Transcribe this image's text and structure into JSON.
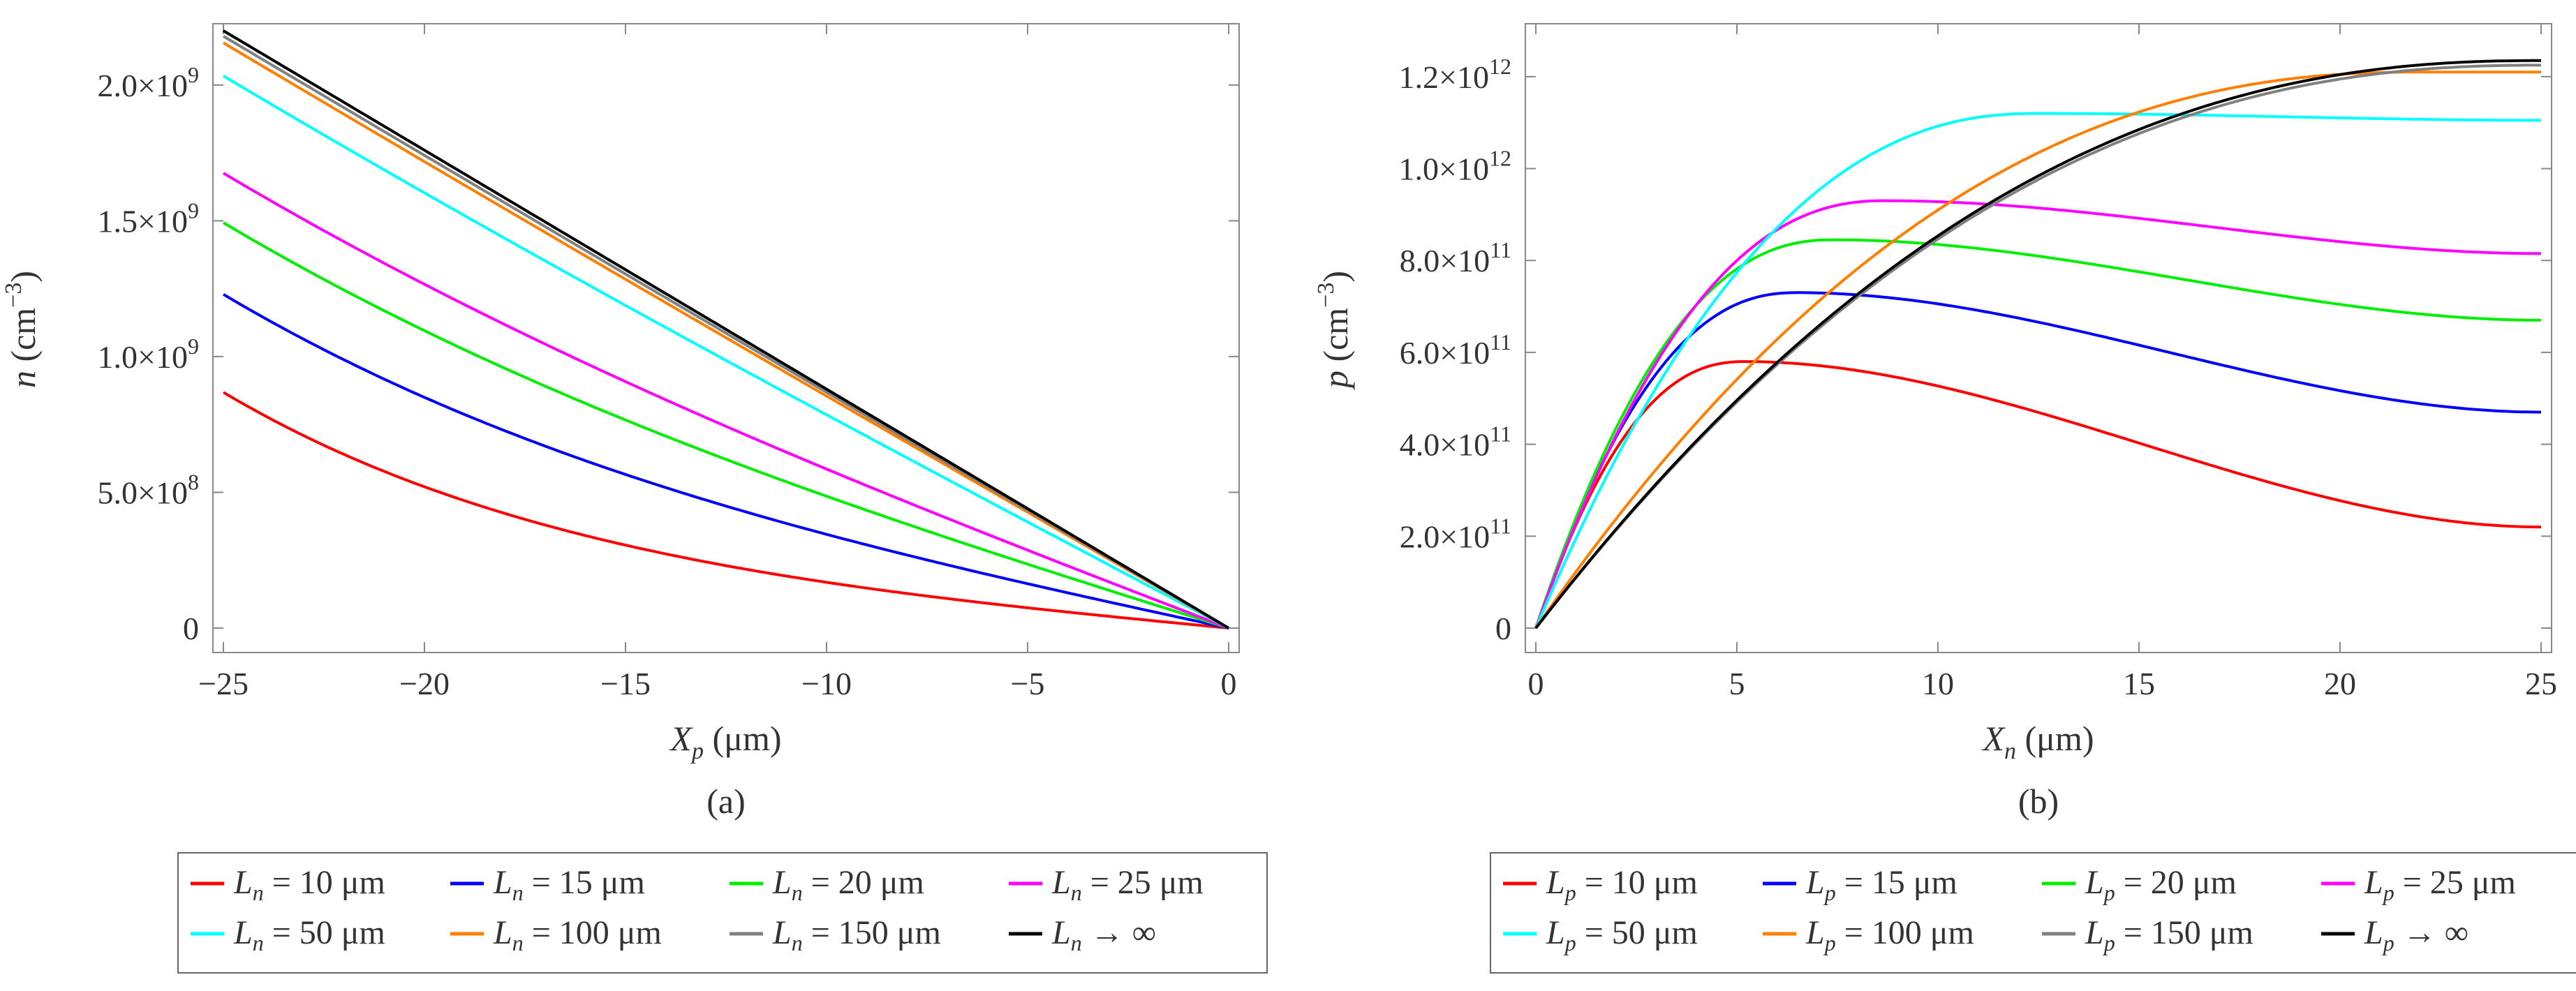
{
  "chart_data": [
    {
      "type": "line",
      "panel": "a",
      "caption": "(a)",
      "xlabel": {
        "var": "X",
        "sub": "p",
        "unit": " (μm)"
      },
      "ylabel": {
        "var": "n",
        "unit_prefix": " (cm",
        "exp": "−3",
        "unit_suffix": ")"
      },
      "xlim": [
        -25,
        0
      ],
      "ylim": [
        0,
        2200000000.0
      ],
      "xticks": [
        -25,
        -20,
        -15,
        -10,
        -5,
        0
      ],
      "xtick_labels": [
        "−25",
        "−20",
        "−15",
        "−10",
        "−5",
        "0"
      ],
      "yticks": [
        {
          "value": 0,
          "mant": "0",
          "exp": ""
        },
        {
          "value": 500000000.0,
          "mant": "5.0×10",
          "exp": "8"
        },
        {
          "value": 1000000000.0,
          "mant": "1.0×10",
          "exp": "9"
        },
        {
          "value": 1500000000.0,
          "mant": "1.5×10",
          "exp": "9"
        },
        {
          "value": 2000000000.0,
          "mant": "2.0×10",
          "exp": "9"
        }
      ],
      "series": [
        {
          "name": "L_n = 10 μm",
          "param": 10,
          "color": "#ff0000"
        },
        {
          "name": "L_n = 15 μm",
          "param": 15,
          "color": "#0000ff"
        },
        {
          "name": "L_n = 20 μm",
          "param": 20,
          "color": "#00ee00"
        },
        {
          "name": "L_n = 25 μm",
          "param": 25,
          "color": "#ff00ff"
        },
        {
          "name": "L_n = 50 μm",
          "param": 50,
          "color": "#00ffff"
        },
        {
          "name": "L_n = 100 μm",
          "param": 100,
          "color": "#ff8000"
        },
        {
          "name": "L_n = 150 μm",
          "param": 150,
          "color": "#808080"
        },
        {
          "name": "L_n → ∞",
          "param": null,
          "color": "#000000"
        }
      ],
      "legend": {
        "var": "L",
        "sub": "n",
        "entries": [
          {
            "eq": " =  10 μm",
            "color": "#ff0000"
          },
          {
            "eq": " = 15 μm",
            "color": "#0000ff"
          },
          {
            "eq": " =  20 μm",
            "color": "#00ee00"
          },
          {
            "eq": " =  25 μm",
            "color": "#ff00ff"
          },
          {
            "eq": " =  50 μm",
            "color": "#00ffff"
          },
          {
            "eq": " = 100 μm",
            "color": "#ff8000"
          },
          {
            "eq": " = 150 μm",
            "color": "#808080"
          },
          {
            "eq": " → ∞",
            "color": "#000000"
          }
        ]
      }
    },
    {
      "type": "line",
      "panel": "b",
      "caption": "(b)",
      "xlabel": {
        "var": "X",
        "sub": "n",
        "unit": " (μm)"
      },
      "ylabel": {
        "var": "p",
        "unit_prefix": " (cm",
        "exp": "−3",
        "unit_suffix": ")"
      },
      "xlim": [
        0,
        25
      ],
      "ylim": [
        0,
        1300000000000.0
      ],
      "xticks": [
        0,
        5,
        10,
        15,
        20,
        25
      ],
      "xtick_labels": [
        "0",
        "5",
        "10",
        "15",
        "20",
        "25"
      ],
      "yticks": [
        {
          "value": 0,
          "mant": "0",
          "exp": ""
        },
        {
          "value": 200000000000.0,
          "mant": "2.0×10",
          "exp": "11"
        },
        {
          "value": 400000000000.0,
          "mant": "4.0×10",
          "exp": "11"
        },
        {
          "value": 600000000000.0,
          "mant": "6.0×10",
          "exp": "11"
        },
        {
          "value": 800000000000.0,
          "mant": "8.0×10",
          "exp": "11"
        },
        {
          "value": 1000000000000.0,
          "mant": "1.0×10",
          "exp": "12"
        },
        {
          "value": 1200000000000.0,
          "mant": "1.2×10",
          "exp": "12"
        }
      ],
      "series": [
        {
          "name": "L_p = 10 μm",
          "param": 10,
          "color": "#ff0000",
          "peak": [
            5.2,
            580000000000.0
          ],
          "end": 220000000000.0
        },
        {
          "name": "L_p = 15 μm",
          "param": 15,
          "color": "#0000ff",
          "peak": [
            6.5,
            730000000000.0
          ],
          "end": 470000000000.0
        },
        {
          "name": "L_p = 20 μm",
          "param": 20,
          "color": "#00ee00",
          "peak": [
            7.4,
            845000000000.0
          ],
          "end": 670000000000.0
        },
        {
          "name": "L_p = 25 μm",
          "param": 25,
          "color": "#ff00ff",
          "peak": [
            8.7,
            930000000000.0
          ],
          "end": 815000000000.0
        },
        {
          "name": "L_p = 50 μm",
          "param": 50,
          "color": "#00ffff",
          "peak": [
            12.5,
            1120000000000.0
          ],
          "end": 1105000000000.0
        },
        {
          "name": "L_p = 100 μm",
          "param": 100,
          "color": "#ff8000",
          "peak": [
            22,
            1210000000000.0
          ],
          "end": 1210000000000.0
        },
        {
          "name": "L_p = 150 μm",
          "param": 150,
          "color": "#808080",
          "peak": [
            25,
            1225000000000.0
          ],
          "end": 1225000000000.0
        },
        {
          "name": "L_p → ∞",
          "param": null,
          "color": "#000000",
          "peak": [
            25,
            1235000000000.0
          ],
          "end": 1235000000000.0
        }
      ],
      "legend": {
        "var": "L",
        "sub": "p",
        "entries": [
          {
            "eq": " =  10 μm",
            "color": "#ff0000"
          },
          {
            "eq": " = 15 μm",
            "color": "#0000ff"
          },
          {
            "eq": " =  20 μm",
            "color": "#00ee00"
          },
          {
            "eq": " =  25 μm",
            "color": "#ff00ff"
          },
          {
            "eq": " =  50 μm",
            "color": "#00ffff"
          },
          {
            "eq": " = 100 μm",
            "color": "#ff8000"
          },
          {
            "eq": " = 150 μm",
            "color": "#808080"
          },
          {
            "eq": " → ∞",
            "color": "#000000"
          }
        ]
      }
    }
  ]
}
